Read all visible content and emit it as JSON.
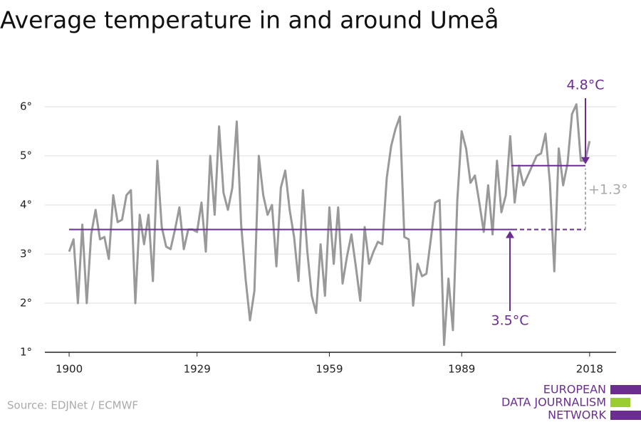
{
  "chart_data": {
    "type": "line",
    "title": "Average temperature in and around Umeå",
    "source": "Source: EDJNet / ECMWF",
    "logo": [
      "EUROPEAN",
      "DATA JOURNALISM",
      "NETWORK"
    ],
    "color": "#999999",
    "accent": "#6b2d8f",
    "x": [
      1900,
      1901,
      1902,
      1903,
      1904,
      1905,
      1906,
      1907,
      1908,
      1909,
      1910,
      1911,
      1912,
      1913,
      1914,
      1915,
      1916,
      1917,
      1918,
      1919,
      1920,
      1921,
      1922,
      1923,
      1924,
      1925,
      1926,
      1927,
      1928,
      1929,
      1930,
      1931,
      1932,
      1933,
      1934,
      1935,
      1936,
      1937,
      1938,
      1939,
      1940,
      1941,
      1942,
      1943,
      1944,
      1945,
      1946,
      1947,
      1948,
      1949,
      1950,
      1951,
      1952,
      1953,
      1954,
      1955,
      1956,
      1957,
      1958,
      1959,
      1960,
      1961,
      1962,
      1963,
      1964,
      1965,
      1966,
      1967,
      1968,
      1969,
      1970,
      1971,
      1972,
      1973,
      1974,
      1975,
      1976,
      1977,
      1978,
      1979,
      1980,
      1981,
      1982,
      1983,
      1984,
      1985,
      1986,
      1987,
      1988,
      1989,
      1990,
      1991,
      1992,
      1993,
      1994,
      1995,
      1996,
      1997,
      1998,
      1999,
      2000,
      2001,
      2002,
      2003,
      2004,
      2005,
      2006,
      2007,
      2008,
      2009,
      2010,
      2011,
      2012,
      2013,
      2014,
      2015,
      2016,
      2017,
      2018
    ],
    "values": [
      3.05,
      3.3,
      2.0,
      3.6,
      2.0,
      3.4,
      3.9,
      3.3,
      3.35,
      2.9,
      4.2,
      3.65,
      3.7,
      4.2,
      4.3,
      2.0,
      3.8,
      3.2,
      3.8,
      2.45,
      4.9,
      3.55,
      3.15,
      3.1,
      3.5,
      3.95,
      3.1,
      3.5,
      3.5,
      3.45,
      4.05,
      3.05,
      5.0,
      3.8,
      5.6,
      4.25,
      3.9,
      4.35,
      5.7,
      3.6,
      2.5,
      1.65,
      2.25,
      5.0,
      4.2,
      3.8,
      4.0,
      2.75,
      4.35,
      4.7,
      3.9,
      3.35,
      2.45,
      4.3,
      3.05,
      2.15,
      1.8,
      3.2,
      2.15,
      3.95,
      2.8,
      3.95,
      2.4,
      2.95,
      3.4,
      2.75,
      2.05,
      3.55,
      2.8,
      3.05,
      3.25,
      3.2,
      4.55,
      5.2,
      5.55,
      5.8,
      3.35,
      3.3,
      1.95,
      2.8,
      2.55,
      2.6,
      3.3,
      4.05,
      4.1,
      1.15,
      2.5,
      1.45,
      4.1,
      5.5,
      5.15,
      4.45,
      4.6,
      4.05,
      3.45,
      4.4,
      3.4,
      4.9,
      3.85,
      4.2,
      5.4,
      4.05,
      4.8,
      4.4,
      4.6,
      4.8,
      5.0,
      5.05,
      5.45,
      4.45,
      2.65,
      5.15,
      4.4,
      4.85,
      5.85,
      6.05,
      4.9,
      4.9,
      5.3
    ],
    "xlim": [
      1894.5,
      2024
    ],
    "xticks": [
      1900,
      1929,
      1959,
      1989,
      2018
    ],
    "ylim": [
      1,
      6
    ],
    "yticks": [
      {
        "value": 1,
        "label": "1°"
      },
      {
        "value": 2,
        "label": "2°"
      },
      {
        "value": 3,
        "label": "3°"
      },
      {
        "value": 4,
        "label": "4°"
      },
      {
        "value": 5,
        "label": "5°"
      },
      {
        "value": 6,
        "label": "6°"
      }
    ],
    "grid": true,
    "annotations": [
      {
        "value": 3.5,
        "label": "3.5°C"
      },
      {
        "value": 4.8,
        "label": "4.8°C"
      },
      {
        "value": 1.3,
        "label": "+1.3°"
      }
    ]
  }
}
